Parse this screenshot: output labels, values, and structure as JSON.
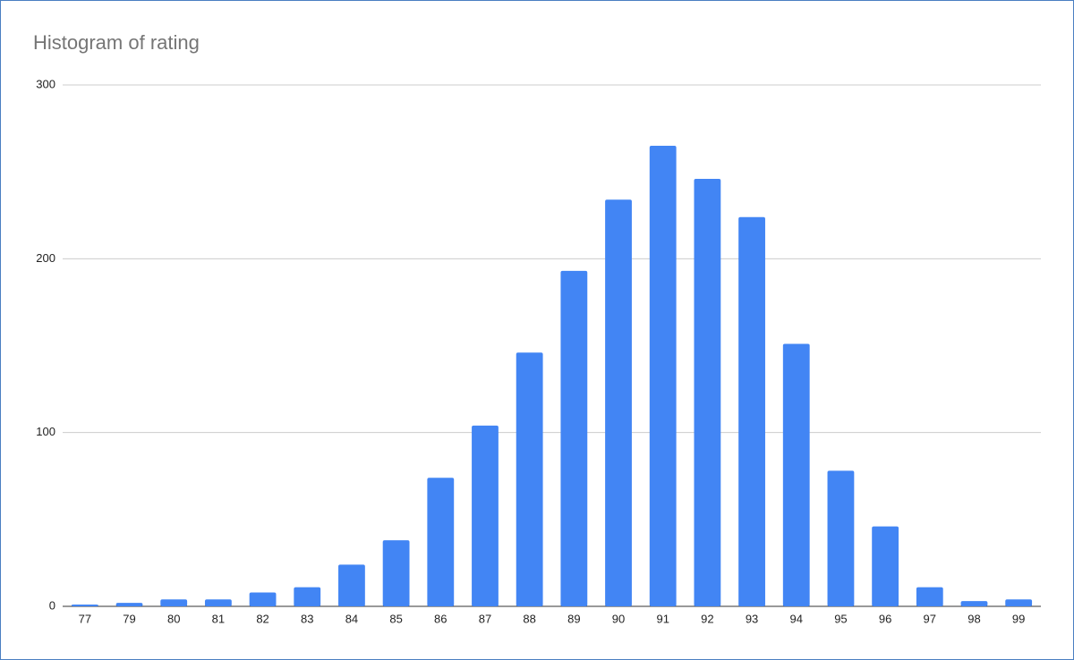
{
  "chart_data": {
    "type": "bar",
    "title": "Histogram of rating",
    "categories": [
      "77",
      "79",
      "80",
      "81",
      "82",
      "83",
      "84",
      "85",
      "86",
      "87",
      "88",
      "89",
      "90",
      "91",
      "92",
      "93",
      "94",
      "95",
      "96",
      "97",
      "98",
      "99"
    ],
    "values": [
      1,
      2,
      4,
      4,
      8,
      11,
      24,
      38,
      74,
      104,
      146,
      193,
      234,
      265,
      246,
      224,
      151,
      78,
      46,
      11,
      3,
      4
    ],
    "color": "#4285f4",
    "ylim": [
      0,
      300
    ],
    "yticks": [
      0,
      100,
      200,
      300
    ],
    "grid": true
  }
}
